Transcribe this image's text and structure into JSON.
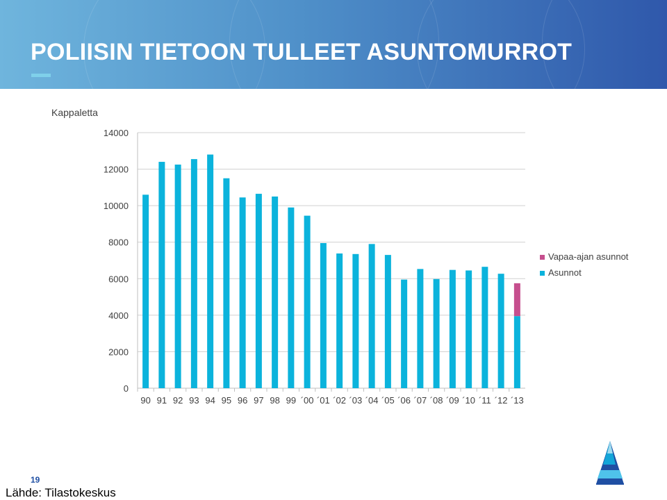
{
  "slide": {
    "title": "POLIISIN TIETOON TULLEET ASUNTOMURROT",
    "page_number": "19",
    "source": "Lähde: Tilastokeskus"
  },
  "colors": {
    "asunnot": "#0bb3dc",
    "vapaa_ajan": "#c64f8e",
    "title_text": "#ffffff",
    "page_number": "#1f4fa3"
  },
  "chart_data": {
    "type": "bar",
    "stacked": true,
    "ylabel": "Kappaletta",
    "ylim": [
      0,
      14000
    ],
    "yticks": [
      0,
      2000,
      4000,
      6000,
      8000,
      10000,
      12000,
      14000
    ],
    "grid": true,
    "legend_position": "right",
    "categories": [
      "90",
      "91",
      "92",
      "93",
      "94",
      "95",
      "96",
      "97",
      "98",
      "99",
      "´00",
      "´01",
      "´02",
      "´03",
      "´04",
      "´05",
      "´06",
      "´07",
      "´08",
      "´09",
      "´10",
      "´11",
      "´12",
      "´13"
    ],
    "series": [
      {
        "name": "Asunnot",
        "values": [
          10600,
          12400,
          12250,
          12550,
          12800,
          11500,
          10450,
          10650,
          10500,
          9900,
          9450,
          7950,
          7380,
          7350,
          7900,
          7300,
          5950,
          6530,
          5980,
          6480,
          6450,
          6650,
          6270,
          3950
        ]
      },
      {
        "name": "Vapaa-ajan asunnot",
        "values": [
          0,
          0,
          0,
          0,
          0,
          0,
          0,
          0,
          0,
          0,
          0,
          0,
          0,
          0,
          0,
          0,
          0,
          0,
          0,
          0,
          0,
          0,
          0,
          1800
        ]
      }
    ],
    "legend_order": [
      "Vapaa-ajan asunnot",
      "Asunnot"
    ]
  }
}
